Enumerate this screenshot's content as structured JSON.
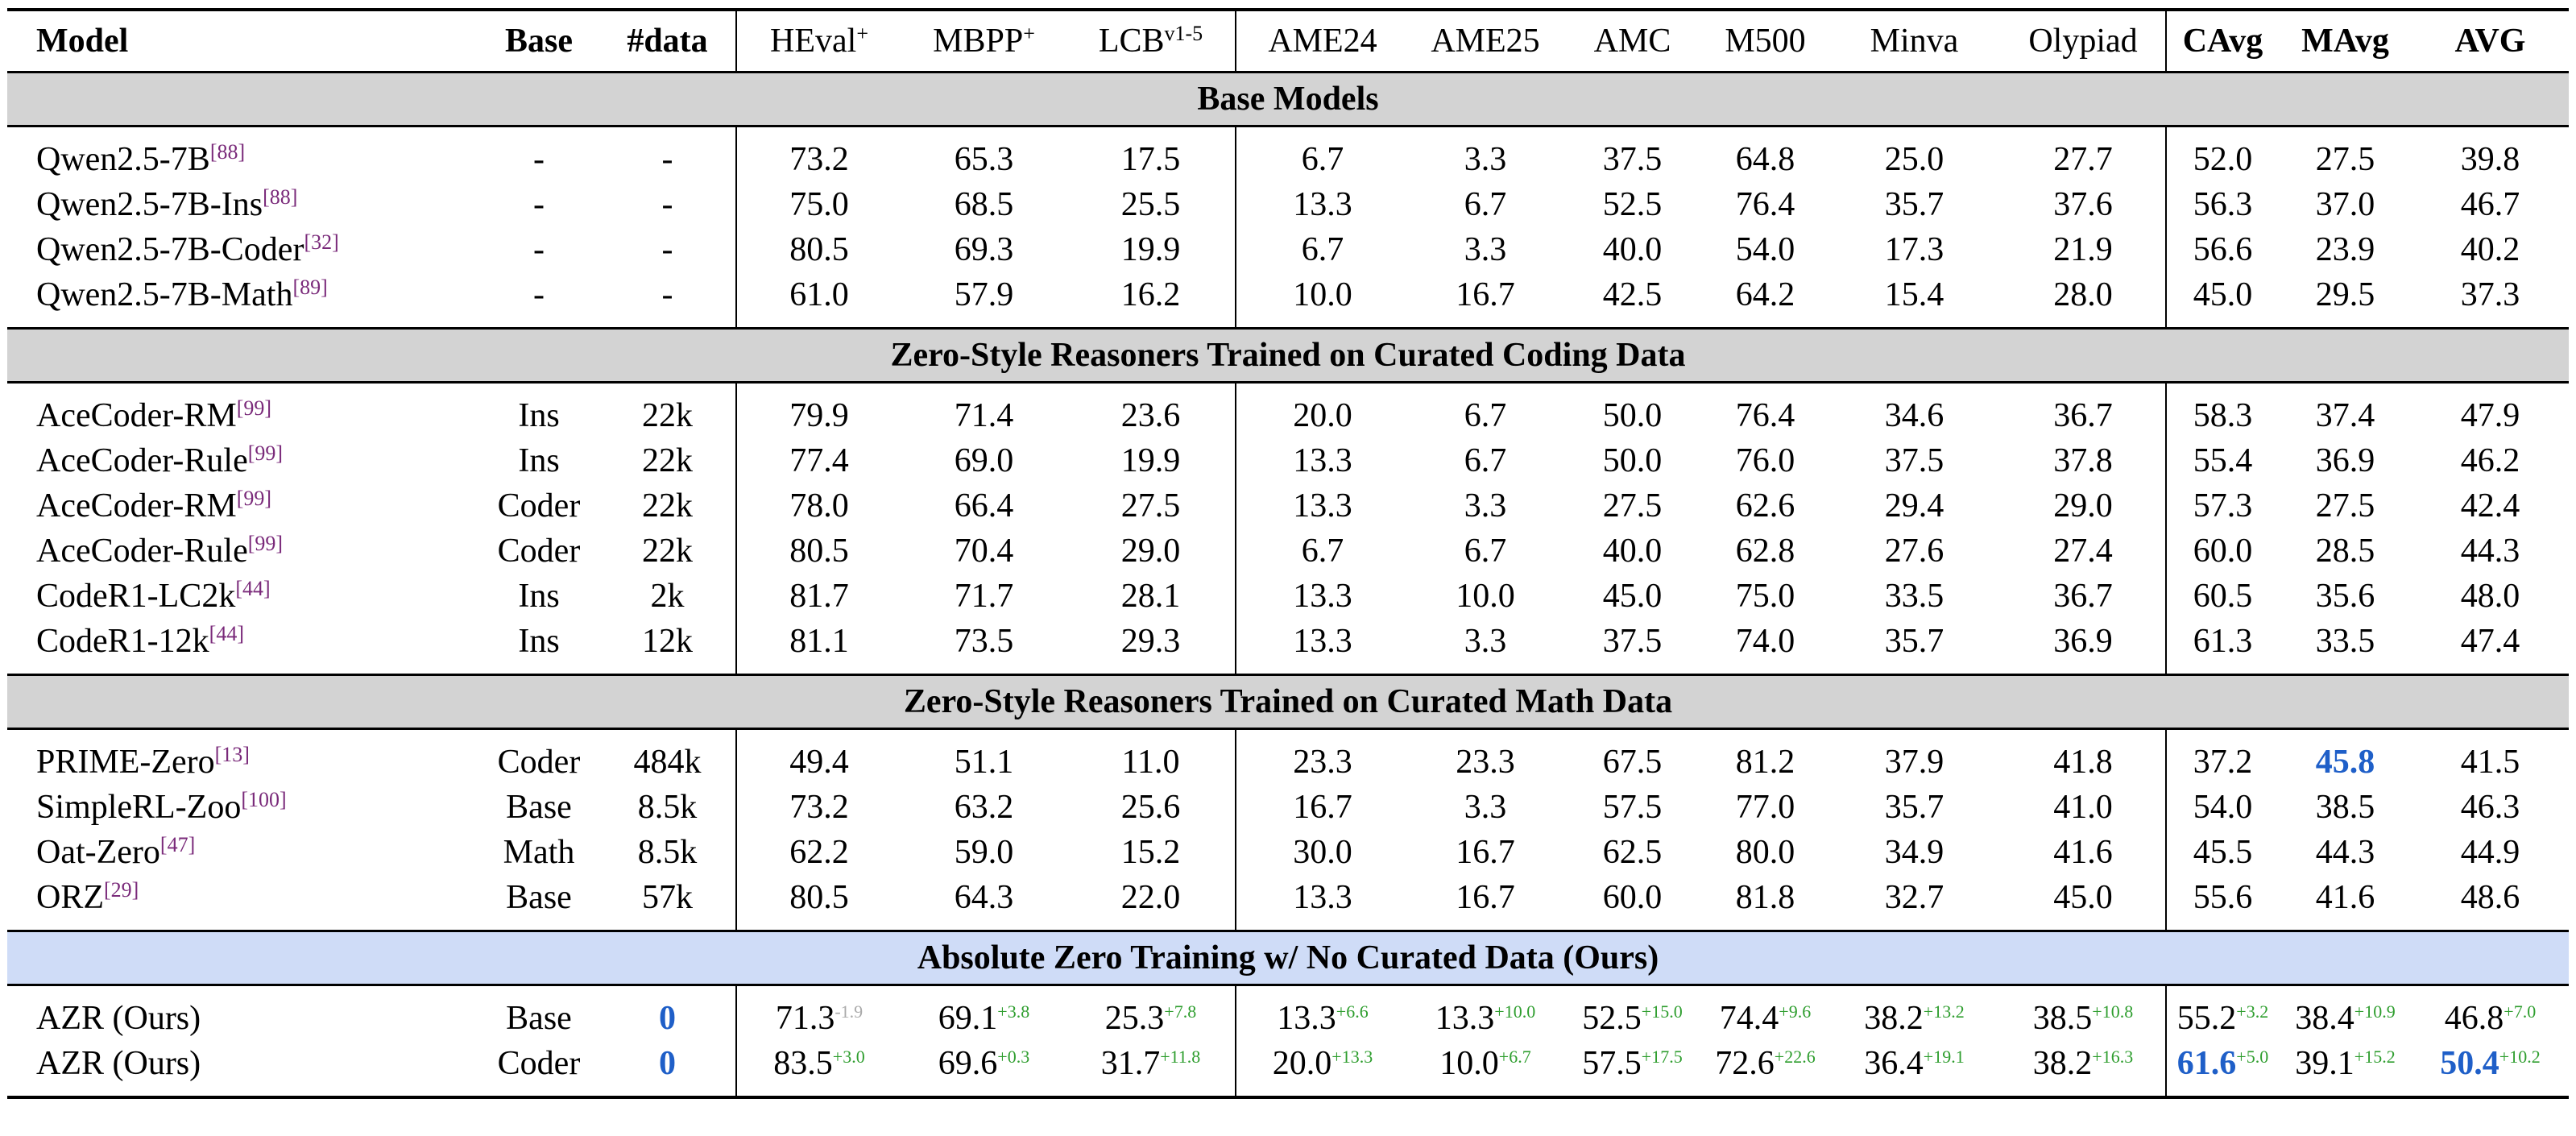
{
  "table": {
    "columns": [
      {
        "value": "Model"
      },
      {
        "value": "Base"
      },
      {
        "value": "#data"
      },
      {
        "value": "HEval",
        "sup": "+"
      },
      {
        "value": "MBPP",
        "sup": "+"
      },
      {
        "value": "LCB",
        "sup": "v1-5"
      },
      {
        "value": "AME24"
      },
      {
        "value": "AME25"
      },
      {
        "value": "AMC"
      },
      {
        "value": "M500"
      },
      {
        "value": "Minva"
      },
      {
        "value": "Olypiad"
      },
      {
        "value": "CAvg"
      },
      {
        "value": "MAvg"
      },
      {
        "value": "AVG"
      }
    ],
    "sections": [
      {
        "title": "Base Models",
        "rows": [
          [
            {
              "value": "Qwen2.5-7B",
              "ref": "[88]"
            },
            "-",
            "-",
            "73.2",
            "65.3",
            "17.5",
            "6.7",
            "3.3",
            "37.5",
            "64.8",
            "25.0",
            "27.7",
            "52.0",
            "27.5",
            "39.8"
          ],
          [
            {
              "value": "Qwen2.5-7B-Ins",
              "ref": "[88]"
            },
            "-",
            "-",
            "75.0",
            "68.5",
            "25.5",
            "13.3",
            "6.7",
            "52.5",
            "76.4",
            "35.7",
            "37.6",
            "56.3",
            "37.0",
            "46.7"
          ],
          [
            {
              "value": "Qwen2.5-7B-Coder",
              "ref": "[32]"
            },
            "-",
            "-",
            "80.5",
            "69.3",
            "19.9",
            "6.7",
            "3.3",
            "40.0",
            "54.0",
            "17.3",
            "21.9",
            "56.6",
            "23.9",
            "40.2"
          ],
          [
            {
              "value": "Qwen2.5-7B-Math",
              "ref": "[89]"
            },
            "-",
            "-",
            "61.0",
            "57.9",
            "16.2",
            "10.0",
            "16.7",
            "42.5",
            "64.2",
            "15.4",
            "28.0",
            "45.0",
            "29.5",
            "37.3"
          ]
        ]
      },
      {
        "title": "Zero-Style Reasoners Trained on Curated Coding Data",
        "rows": [
          [
            {
              "value": "AceCoder-RM",
              "ref": "[99]"
            },
            "Ins",
            "22k",
            "79.9",
            "71.4",
            "23.6",
            "20.0",
            "6.7",
            "50.0",
            "76.4",
            "34.6",
            "36.7",
            "58.3",
            "37.4",
            "47.9"
          ],
          [
            {
              "value": "AceCoder-Rule",
              "ref": "[99]"
            },
            "Ins",
            "22k",
            "77.4",
            "69.0",
            "19.9",
            "13.3",
            "6.7",
            "50.0",
            "76.0",
            "37.5",
            "37.8",
            "55.4",
            "36.9",
            "46.2"
          ],
          [
            {
              "value": "AceCoder-RM",
              "ref": "[99]"
            },
            "Coder",
            "22k",
            "78.0",
            "66.4",
            "27.5",
            "13.3",
            "3.3",
            "27.5",
            "62.6",
            "29.4",
            "29.0",
            "57.3",
            "27.5",
            "42.4"
          ],
          [
            {
              "value": "AceCoder-Rule",
              "ref": "[99]"
            },
            "Coder",
            "22k",
            "80.5",
            "70.4",
            "29.0",
            "6.7",
            "6.7",
            "40.0",
            "62.8",
            "27.6",
            "27.4",
            "60.0",
            "28.5",
            "44.3"
          ],
          [
            {
              "value": "CodeR1-LC2k",
              "ref": "[44]"
            },
            "Ins",
            "2k",
            "81.7",
            "71.7",
            "28.1",
            "13.3",
            "10.0",
            "45.0",
            "75.0",
            "33.5",
            "36.7",
            "60.5",
            "35.6",
            "48.0"
          ],
          [
            {
              "value": "CodeR1-12k",
              "ref": "[44]"
            },
            "Ins",
            "12k",
            "81.1",
            "73.5",
            "29.3",
            "13.3",
            "3.3",
            "37.5",
            "74.0",
            "35.7",
            "36.9",
            "61.3",
            "33.5",
            "47.4"
          ]
        ]
      },
      {
        "title": "Zero-Style Reasoners Trained on Curated Math Data",
        "rows": [
          [
            {
              "value": "PRIME-Zero",
              "ref": "[13]"
            },
            "Coder",
            "484k",
            "49.4",
            "51.1",
            "11.0",
            "23.3",
            "23.3",
            "67.5",
            "81.2",
            "37.9",
            "41.8",
            "37.2",
            {
              "value": "45.8",
              "best": true
            },
            "41.5"
          ],
          [
            {
              "value": "SimpleRL-Zoo",
              "ref": "[100]"
            },
            "Base",
            "8.5k",
            "73.2",
            "63.2",
            "25.6",
            "16.7",
            "3.3",
            "57.5",
            "77.0",
            "35.7",
            "41.0",
            "54.0",
            "38.5",
            "46.3"
          ],
          [
            {
              "value": "Oat-Zero",
              "ref": "[47]"
            },
            "Math",
            "8.5k",
            "62.2",
            "59.0",
            "15.2",
            "30.0",
            "16.7",
            "62.5",
            "80.0",
            "34.9",
            "41.6",
            "45.5",
            "44.3",
            "44.9"
          ],
          [
            {
              "value": "ORZ",
              "ref": "[29]"
            },
            "Base",
            "57k",
            "80.5",
            "64.3",
            "22.0",
            "13.3",
            "16.7",
            "60.0",
            "81.8",
            "32.7",
            "45.0",
            "55.6",
            "41.6",
            "48.6"
          ]
        ]
      },
      {
        "title": "Absolute Zero Training w/ No Curated Data (Ours)",
        "highlight": true,
        "rows": [
          [
            "AZR (Ours)",
            "Base",
            {
              "value": "0",
              "best": true
            },
            {
              "value": "71.3",
              "delta": "-1.9"
            },
            {
              "value": "69.1",
              "delta": "+3.8"
            },
            {
              "value": "25.3",
              "delta": "+7.8"
            },
            {
              "value": "13.3",
              "delta": "+6.6"
            },
            {
              "value": "13.3",
              "delta": "+10.0"
            },
            {
              "value": "52.5",
              "delta": "+15.0"
            },
            {
              "value": "74.4",
              "delta": "+9.6"
            },
            {
              "value": "38.2",
              "delta": "+13.2"
            },
            {
              "value": "38.5",
              "delta": "+10.8"
            },
            {
              "value": "55.2",
              "delta": "+3.2"
            },
            {
              "value": "38.4",
              "delta": "+10.9"
            },
            {
              "value": "46.8",
              "delta": "+7.0"
            }
          ],
          [
            "AZR (Ours)",
            "Coder",
            {
              "value": "0",
              "best": true
            },
            {
              "value": "83.5",
              "delta": "+3.0"
            },
            {
              "value": "69.6",
              "delta": "+0.3"
            },
            {
              "value": "31.7",
              "delta": "+11.8"
            },
            {
              "value": "20.0",
              "delta": "+13.3"
            },
            {
              "value": "10.0",
              "delta": "+6.7"
            },
            {
              "value": "57.5",
              "delta": "+17.5"
            },
            {
              "value": "72.6",
              "delta": "+22.6"
            },
            {
              "value": "36.4",
              "delta": "+19.1"
            },
            {
              "value": "38.2",
              "delta": "+16.3"
            },
            {
              "value": "61.6",
              "delta": "+5.0",
              "best": true
            },
            {
              "value": "39.1",
              "delta": "+15.2"
            },
            {
              "value": "50.4",
              "delta": "+10.2",
              "best": true
            }
          ]
        ]
      }
    ]
  }
}
